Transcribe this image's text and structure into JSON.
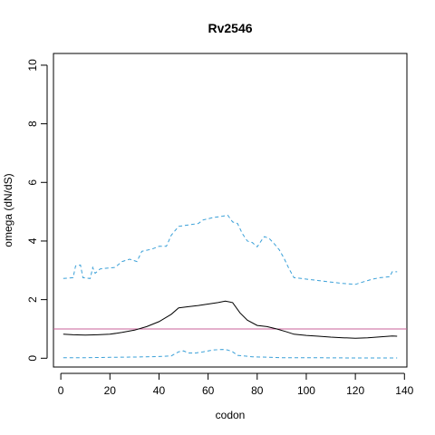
{
  "chart_data": {
    "type": "line",
    "title": "Rv2546",
    "xlabel": "codon",
    "ylabel": "omega (dN/dS)",
    "xlim": [
      -3,
      141
    ],
    "ylim": [
      -0.3,
      10.4
    ],
    "x_ticks": [
      0,
      20,
      40,
      60,
      80,
      100,
      120,
      140
    ],
    "y_ticks": [
      0,
      2,
      4,
      6,
      8,
      10
    ],
    "grid": false,
    "legend": "none",
    "reference_line": {
      "y": 1,
      "color": "#c9609a"
    },
    "colors": {
      "mean": "#000000",
      "upper": "#3aa0d8",
      "lower": "#3aa0d8",
      "axis": "#000000"
    },
    "series": [
      {
        "key": "mean",
        "style": "solid",
        "points": [
          [
            1,
            0.82
          ],
          [
            5,
            0.8
          ],
          [
            10,
            0.79
          ],
          [
            15,
            0.8
          ],
          [
            20,
            0.82
          ],
          [
            25,
            0.88
          ],
          [
            30,
            0.96
          ],
          [
            35,
            1.08
          ],
          [
            40,
            1.25
          ],
          [
            45,
            1.5
          ],
          [
            48,
            1.72
          ],
          [
            52,
            1.76
          ],
          [
            56,
            1.8
          ],
          [
            60,
            1.85
          ],
          [
            64,
            1.9
          ],
          [
            67,
            1.95
          ],
          [
            70,
            1.9
          ],
          [
            73,
            1.55
          ],
          [
            76,
            1.3
          ],
          [
            80,
            1.12
          ],
          [
            84,
            1.08
          ],
          [
            88,
            1.0
          ],
          [
            92,
            0.9
          ],
          [
            95,
            0.82
          ],
          [
            100,
            0.78
          ],
          [
            105,
            0.75
          ],
          [
            110,
            0.72
          ],
          [
            115,
            0.7
          ],
          [
            120,
            0.68
          ],
          [
            125,
            0.7
          ],
          [
            130,
            0.73
          ],
          [
            135,
            0.76
          ],
          [
            137,
            0.75
          ]
        ]
      },
      {
        "key": "upper",
        "style": "dashed",
        "points": [
          [
            1,
            2.72
          ],
          [
            5,
            2.75
          ],
          [
            6,
            3.15
          ],
          [
            8,
            3.18
          ],
          [
            9,
            2.75
          ],
          [
            12,
            2.72
          ],
          [
            13,
            3.1
          ],
          [
            14,
            2.9
          ],
          [
            16,
            3.05
          ],
          [
            22,
            3.1
          ],
          [
            25,
            3.3
          ],
          [
            28,
            3.38
          ],
          [
            31,
            3.3
          ],
          [
            33,
            3.65
          ],
          [
            37,
            3.72
          ],
          [
            40,
            3.82
          ],
          [
            43,
            3.82
          ],
          [
            45,
            4.2
          ],
          [
            48,
            4.5
          ],
          [
            52,
            4.55
          ],
          [
            56,
            4.6
          ],
          [
            58,
            4.72
          ],
          [
            62,
            4.8
          ],
          [
            66,
            4.85
          ],
          [
            68,
            4.88
          ],
          [
            70,
            4.65
          ],
          [
            72,
            4.6
          ],
          [
            74,
            4.25
          ],
          [
            76,
            4.0
          ],
          [
            78,
            3.95
          ],
          [
            80,
            3.8
          ],
          [
            82,
            4.05
          ],
          [
            83,
            4.15
          ],
          [
            85,
            4.08
          ],
          [
            87,
            3.9
          ],
          [
            89,
            3.7
          ],
          [
            91,
            3.4
          ],
          [
            93,
            3.05
          ],
          [
            95,
            2.75
          ],
          [
            98,
            2.72
          ],
          [
            105,
            2.65
          ],
          [
            110,
            2.6
          ],
          [
            115,
            2.55
          ],
          [
            120,
            2.52
          ],
          [
            123,
            2.6
          ],
          [
            127,
            2.7
          ],
          [
            130,
            2.75
          ],
          [
            134,
            2.78
          ],
          [
            135,
            2.95
          ],
          [
            137,
            2.95
          ]
        ]
      },
      {
        "key": "lower",
        "style": "dashed",
        "points": [
          [
            1,
            0.02
          ],
          [
            10,
            0.02
          ],
          [
            20,
            0.03
          ],
          [
            30,
            0.04
          ],
          [
            40,
            0.06
          ],
          [
            45,
            0.08
          ],
          [
            48,
            0.22
          ],
          [
            50,
            0.25
          ],
          [
            52,
            0.18
          ],
          [
            55,
            0.18
          ],
          [
            58,
            0.22
          ],
          [
            62,
            0.28
          ],
          [
            66,
            0.3
          ],
          [
            68,
            0.28
          ],
          [
            70,
            0.22
          ],
          [
            72,
            0.1
          ],
          [
            78,
            0.05
          ],
          [
            90,
            0.02
          ],
          [
            100,
            0.02
          ],
          [
            120,
            0.01
          ],
          [
            137,
            0.01
          ]
        ]
      }
    ]
  }
}
